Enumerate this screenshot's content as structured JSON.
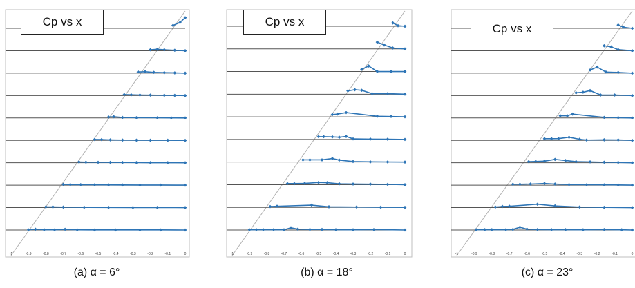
{
  "chart_data": [
    {
      "type": "line",
      "label": "Cp vs x",
      "caption": "(a) α = 6°",
      "x_ticks": [
        "-1",
        "-0.9",
        "-0.8",
        "-0.7",
        "-0.6",
        "-0.5",
        "-0.4",
        "-0.3",
        "-0.2",
        "-0.1",
        "0"
      ],
      "xlim": [
        -1,
        0
      ],
      "series_color": "#2e75b6",
      "stations": [
        [
          [
            -0.07,
            0.3
          ],
          [
            -0.03,
            0.6
          ],
          [
            0.0,
            1.1
          ]
        ],
        [
          [
            -0.2,
            0.1
          ],
          [
            -0.16,
            0.15
          ],
          [
            -0.12,
            0.1
          ],
          [
            -0.06,
            0.05
          ],
          [
            0.0,
            0.0
          ]
        ],
        [
          [
            -0.27,
            0.12
          ],
          [
            -0.23,
            0.15
          ],
          [
            -0.18,
            0.08
          ],
          [
            -0.12,
            0.05
          ],
          [
            -0.06,
            0.03
          ],
          [
            0.0,
            0.0
          ]
        ],
        [
          [
            -0.35,
            0.1
          ],
          [
            -0.31,
            0.08
          ],
          [
            -0.26,
            0.06
          ],
          [
            -0.2,
            0.05
          ],
          [
            -0.12,
            0.03
          ],
          [
            -0.06,
            0.02
          ],
          [
            0.0,
            0.0
          ]
        ],
        [
          [
            -0.44,
            0.1
          ],
          [
            -0.41,
            0.13
          ],
          [
            -0.36,
            0.05
          ],
          [
            -0.28,
            0.03
          ],
          [
            -0.16,
            0.02
          ],
          [
            -0.08,
            0.01
          ],
          [
            0.0,
            0.0
          ]
        ],
        [
          [
            -0.52,
            0.09
          ],
          [
            -0.48,
            0.08
          ],
          [
            -0.43,
            0.05
          ],
          [
            -0.36,
            0.03
          ],
          [
            -0.28,
            0.02
          ],
          [
            -0.2,
            0.01
          ],
          [
            -0.1,
            0.01
          ],
          [
            0.0,
            0.0
          ]
        ],
        [
          [
            -0.61,
            0.08
          ],
          [
            -0.57,
            0.06
          ],
          [
            -0.5,
            0.05
          ],
          [
            -0.43,
            0.04
          ],
          [
            -0.36,
            0.03
          ],
          [
            -0.28,
            0.02
          ],
          [
            -0.2,
            0.01
          ],
          [
            -0.1,
            0.01
          ],
          [
            0.0,
            0.0
          ]
        ],
        [
          [
            -0.7,
            0.08
          ],
          [
            -0.66,
            0.06
          ],
          [
            -0.6,
            0.05
          ],
          [
            -0.52,
            0.04
          ],
          [
            -0.44,
            0.03
          ],
          [
            -0.36,
            0.02
          ],
          [
            -0.26,
            0.01
          ],
          [
            -0.14,
            0.01
          ],
          [
            0.0,
            0.0
          ]
        ],
        [
          [
            -0.8,
            0.07
          ],
          [
            -0.76,
            0.07
          ],
          [
            -0.7,
            0.05
          ],
          [
            -0.58,
            0.03
          ],
          [
            -0.44,
            0.02
          ],
          [
            -0.3,
            0.01
          ],
          [
            -0.16,
            0.01
          ],
          [
            0.0,
            0.0
          ]
        ],
        [
          [
            -0.9,
            0.02
          ],
          [
            -0.86,
            0.08
          ],
          [
            -0.81,
            0.03
          ],
          [
            -0.75,
            0.02
          ],
          [
            -0.69,
            0.07
          ],
          [
            -0.62,
            0.02
          ],
          [
            -0.52,
            0.01
          ],
          [
            -0.4,
            0.01
          ],
          [
            -0.26,
            0.01
          ],
          [
            -0.14,
            0.01
          ],
          [
            0.0,
            0.0
          ]
        ]
      ]
    },
    {
      "type": "line",
      "label": "Cp vs x",
      "caption": "(b) α = 18°",
      "x_ticks": [
        "-1",
        "-0.9",
        "-0.8",
        "-0.7",
        "-0.6",
        "-0.5",
        "-0.4",
        "-0.3",
        "-0.2",
        "-0.1",
        "0"
      ],
      "xlim": [
        -1,
        0
      ],
      "series_color": "#2e75b6",
      "stations": [
        [
          [
            -0.07,
            0.3
          ],
          [
            -0.04,
            0.05
          ],
          [
            0.0,
            0.0
          ]
        ],
        [
          [
            -0.16,
            0.6
          ],
          [
            -0.12,
            0.35
          ],
          [
            -0.07,
            0.08
          ],
          [
            0.0,
            0.0
          ]
        ],
        [
          [
            -0.25,
            0.2
          ],
          [
            -0.21,
            0.5
          ],
          [
            -0.16,
            0.0
          ],
          [
            -0.08,
            0.0
          ],
          [
            0.0,
            0.0
          ]
        ],
        [
          [
            -0.33,
            0.3
          ],
          [
            -0.29,
            0.4
          ],
          [
            -0.25,
            0.35
          ],
          [
            -0.19,
            0.05
          ],
          [
            -0.1,
            0.05
          ],
          [
            0.0,
            0.0
          ]
        ],
        [
          [
            -0.42,
            0.2
          ],
          [
            -0.39,
            0.25
          ],
          [
            -0.34,
            0.38
          ],
          [
            -0.16,
            0.05
          ],
          [
            -0.08,
            0.03
          ],
          [
            0.0,
            0.0
          ]
        ],
        [
          [
            -0.5,
            0.25
          ],
          [
            -0.47,
            0.25
          ],
          [
            -0.42,
            0.23
          ],
          [
            -0.38,
            0.2
          ],
          [
            -0.34,
            0.27
          ],
          [
            -0.3,
            0.05
          ],
          [
            -0.2,
            0.03
          ],
          [
            -0.1,
            0.02
          ],
          [
            0.0,
            0.0
          ]
        ],
        [
          [
            -0.59,
            0.2
          ],
          [
            -0.55,
            0.2
          ],
          [
            -0.48,
            0.2
          ],
          [
            -0.42,
            0.32
          ],
          [
            -0.38,
            0.18
          ],
          [
            -0.3,
            0.05
          ],
          [
            -0.2,
            0.02
          ],
          [
            -0.1,
            0.01
          ],
          [
            0.0,
            0.0
          ]
        ],
        [
          [
            -0.68,
            0.1
          ],
          [
            -0.64,
            0.1
          ],
          [
            -0.58,
            0.12
          ],
          [
            -0.5,
            0.2
          ],
          [
            -0.45,
            0.18
          ],
          [
            -0.38,
            0.08
          ],
          [
            -0.3,
            0.06
          ],
          [
            -0.2,
            0.05
          ],
          [
            -0.1,
            0.03
          ],
          [
            0.0,
            0.0
          ]
        ],
        [
          [
            -0.78,
            0.07
          ],
          [
            -0.74,
            0.1
          ],
          [
            -0.54,
            0.2
          ],
          [
            -0.44,
            0.05
          ],
          [
            -0.28,
            0.03
          ],
          [
            -0.14,
            0.01
          ],
          [
            0.0,
            0.0
          ]
        ],
        [
          [
            -0.9,
            0.02
          ],
          [
            -0.86,
            0.03
          ],
          [
            -0.82,
            0.03
          ],
          [
            -0.76,
            0.03
          ],
          [
            -0.7,
            0.02
          ],
          [
            -0.66,
            0.2
          ],
          [
            -0.62,
            0.08
          ],
          [
            -0.55,
            0.05
          ],
          [
            -0.48,
            0.05
          ],
          [
            -0.4,
            0.03
          ],
          [
            -0.3,
            0.02
          ],
          [
            -0.18,
            0.04
          ],
          [
            0.0,
            0.0
          ]
        ]
      ]
    },
    {
      "type": "line",
      "label": "Cp vs x",
      "caption": "(c) α = 23°",
      "x_ticks": [
        "-1",
        "-0.9",
        "-0.8",
        "-0.7",
        "-0.6",
        "-0.5",
        "-0.4",
        "-0.3",
        "-0.2",
        "-0.1",
        "0"
      ],
      "xlim": [
        -1,
        0.05
      ],
      "series_color": "#2e75b6",
      "stations": [
        [
          [
            -0.08,
            0.3
          ],
          [
            -0.05,
            0.1
          ],
          [
            0.0,
            0.0
          ]
        ],
        [
          [
            -0.16,
            0.45
          ],
          [
            -0.12,
            0.35
          ],
          [
            -0.08,
            0.1
          ],
          [
            0.0,
            0.0
          ]
        ],
        [
          [
            -0.24,
            0.28
          ],
          [
            -0.2,
            0.55
          ],
          [
            -0.15,
            0.1
          ],
          [
            -0.08,
            0.06
          ],
          [
            0.0,
            0.0
          ]
        ],
        [
          [
            -0.32,
            0.25
          ],
          [
            -0.28,
            0.3
          ],
          [
            -0.24,
            0.45
          ],
          [
            -0.18,
            0.05
          ],
          [
            -0.1,
            0.05
          ],
          [
            0.0,
            0.0
          ]
        ],
        [
          [
            -0.41,
            0.2
          ],
          [
            -0.37,
            0.2
          ],
          [
            -0.34,
            0.35
          ],
          [
            -0.16,
            0.05
          ],
          [
            -0.08,
            0.03
          ],
          [
            0.0,
            0.0
          ]
        ],
        [
          [
            -0.5,
            0.15
          ],
          [
            -0.46,
            0.15
          ],
          [
            -0.42,
            0.16
          ],
          [
            -0.36,
            0.28
          ],
          [
            -0.3,
            0.1
          ],
          [
            -0.26,
            0.03
          ],
          [
            -0.16,
            0.05
          ],
          [
            -0.08,
            0.04
          ],
          [
            0.0,
            0.0
          ]
        ],
        [
          [
            -0.59,
            0.1
          ],
          [
            -0.55,
            0.12
          ],
          [
            -0.5,
            0.15
          ],
          [
            -0.44,
            0.3
          ],
          [
            -0.38,
            0.2
          ],
          [
            -0.32,
            0.1
          ],
          [
            -0.24,
            0.08
          ],
          [
            -0.16,
            0.05
          ],
          [
            -0.08,
            0.03
          ],
          [
            0.0,
            0.0
          ]
        ],
        [
          [
            -0.68,
            0.08
          ],
          [
            -0.64,
            0.08
          ],
          [
            -0.58,
            0.1
          ],
          [
            -0.5,
            0.15
          ],
          [
            -0.44,
            0.1
          ],
          [
            -0.36,
            0.05
          ],
          [
            -0.26,
            0.04
          ],
          [
            -0.16,
            0.03
          ],
          [
            -0.08,
            0.02
          ],
          [
            0.0,
            0.0
          ]
        ],
        [
          [
            -0.78,
            0.05
          ],
          [
            -0.74,
            0.1
          ],
          [
            -0.7,
            0.12
          ],
          [
            -0.54,
            0.3
          ],
          [
            -0.44,
            0.15
          ],
          [
            -0.3,
            0.05
          ],
          [
            -0.16,
            0.02
          ],
          [
            0.0,
            0.0
          ]
        ],
        [
          [
            -0.89,
            0.02
          ],
          [
            -0.84,
            0.03
          ],
          [
            -0.8,
            0.03
          ],
          [
            -0.72,
            0.03
          ],
          [
            -0.68,
            0.05
          ],
          [
            -0.64,
            0.25
          ],
          [
            -0.6,
            0.08
          ],
          [
            -0.54,
            0.04
          ],
          [
            -0.46,
            0.03
          ],
          [
            -0.38,
            0.03
          ],
          [
            -0.28,
            0.02
          ],
          [
            -0.16,
            0.04
          ],
          [
            -0.06,
            0.02
          ],
          [
            0.0,
            0.0
          ]
        ]
      ]
    }
  ]
}
